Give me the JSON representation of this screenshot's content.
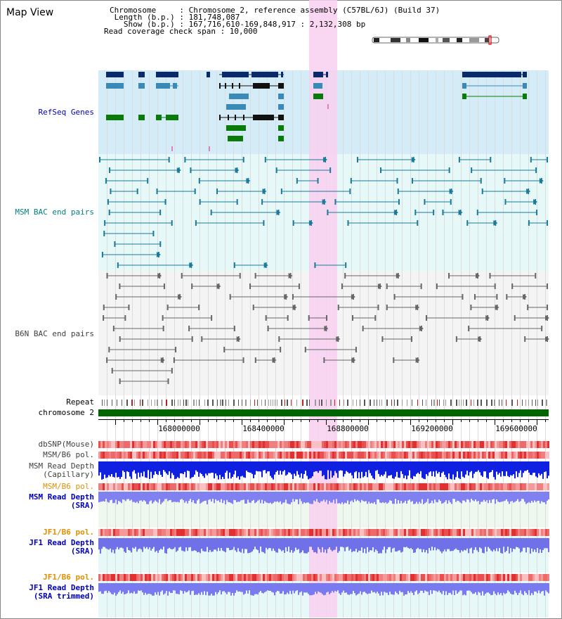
{
  "app_title": "Map View",
  "info": {
    "chromosome": "Chromosome     : Chromosome 2, reference assembly (C57BL/6J) (Build 37)",
    "length": " Length (b.p.) : 181,748,087",
    "show": "   Show (b.p.) : 167,716,610-169,848,917 : 2,132,308 bp",
    "span": "Read coverage check span : 10,000"
  },
  "tracks": {
    "refseq": "RefSeq Genes",
    "msm_bac": "MSM BAC end pairs",
    "b6n_bac": "B6N BAC end pairs",
    "repeat": "Repeat",
    "chromosome": "chromosome 2",
    "dbsnp": "dbSNP(Mouse)",
    "msm_b6_pol_1": "MSM/B6 pol.",
    "msm_read_depth_cap": "MSM Read Depth\n(Capillary)",
    "msm_b6_pol_2": "MSM/B6 pol.",
    "msm_read_depth_sra": "MSM Read Depth\n(SRA)",
    "jf1_b6_pol_1": "JF1/B6 pol.",
    "jf1_read_depth_sra": "JF1 Read Depth\n(SRA)",
    "jf1_b6_pol_2": "JF1/B6 pol.",
    "jf1_read_depth_trim": "JF1 Read Depth\n(SRA trimmed)"
  },
  "axis_ticks": [
    "168000000",
    "168400000",
    "168800000",
    "169200000",
    "169600000"
  ],
  "colors": {
    "highlight": "#f8d0f0",
    "refseq_bg": "#d4ecf8",
    "msm_bg": "#e6f8f8",
    "b6n_bg": "#f4f4f4",
    "chromosome_bar": "#006400",
    "label_blue": "#0000c0",
    "label_teal": "#008080",
    "label_orange": "#e09000",
    "label_gray": "#404040"
  }
}
